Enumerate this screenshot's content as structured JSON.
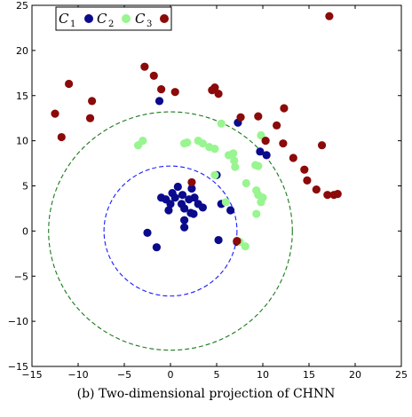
{
  "caption": "(b) Two-dimensional projection of CHNN",
  "chart_data": {
    "type": "scatter",
    "title": "",
    "xlabel": "",
    "ylabel": "",
    "xlim": [
      -15,
      25
    ],
    "ylim": [
      -15,
      25
    ],
    "xticks": [
      -15,
      -10,
      -5,
      0,
      5,
      10,
      15,
      20,
      25
    ],
    "yticks": [
      -15,
      -10,
      -5,
      0,
      5,
      10,
      15,
      20,
      25
    ],
    "xtick_labels": [
      "−15",
      "−10",
      "−5",
      "0",
      "5",
      "10",
      "15",
      "20",
      "25"
    ],
    "ytick_labels": [
      "−15",
      "−10",
      "−5",
      "0",
      "5",
      "10",
      "15",
      "20",
      "25"
    ],
    "grid": false,
    "legend": {
      "placement": "top-left",
      "entries": [
        {
          "symbol": "C",
          "subscript": "1",
          "color": "#0a0a8c"
        },
        {
          "symbol": "C",
          "subscript": "2",
          "color": "#98f590"
        },
        {
          "symbol": "C",
          "subscript": "3",
          "color": "#8b0a0a"
        }
      ]
    },
    "circles": [
      {
        "center": [
          0,
          0
        ],
        "radius": 7.2,
        "color": "#1a1aff",
        "style": "dashed"
      },
      {
        "center": [
          0,
          0
        ],
        "radius": 13.2,
        "color": "#1a7a1a",
        "style": "dashed"
      }
    ],
    "series": [
      {
        "color": "#0a0a8c",
        "points": [
          [
            -1.2,
            14.4
          ],
          [
            -2.5,
            -0.2
          ],
          [
            -1.5,
            -1.8
          ],
          [
            -1.0,
            3.7
          ],
          [
            -0.5,
            3.5
          ],
          [
            0.2,
            4.2
          ],
          [
            0.0,
            3.0
          ],
          [
            -0.2,
            2.3
          ],
          [
            0.5,
            3.7
          ],
          [
            0.8,
            4.9
          ],
          [
            1.3,
            4.0
          ],
          [
            1.2,
            3.0
          ],
          [
            1.5,
            2.5
          ],
          [
            2.0,
            3.5
          ],
          [
            2.3,
            4.7
          ],
          [
            2.6,
            3.7
          ],
          [
            3.0,
            3.0
          ],
          [
            3.5,
            2.6
          ],
          [
            2.5,
            1.9
          ],
          [
            1.5,
            1.2
          ],
          [
            1.5,
            0.4
          ],
          [
            2.2,
            2.0
          ],
          [
            5.0,
            6.2
          ],
          [
            5.5,
            3.0
          ],
          [
            6.5,
            2.3
          ],
          [
            5.2,
            -1.0
          ],
          [
            7.2,
            -1.2
          ],
          [
            9.7,
            8.8
          ],
          [
            10.4,
            8.4
          ],
          [
            7.3,
            12.0
          ]
        ]
      },
      {
        "color": "#98f590",
        "points": [
          [
            -3.5,
            9.5
          ],
          [
            -3.0,
            10.0
          ],
          [
            1.5,
            9.7
          ],
          [
            1.8,
            9.8
          ],
          [
            3.0,
            10.0
          ],
          [
            3.5,
            9.7
          ],
          [
            4.2,
            9.3
          ],
          [
            4.8,
            9.1
          ],
          [
            5.5,
            11.9
          ],
          [
            6.3,
            8.4
          ],
          [
            6.8,
            8.6
          ],
          [
            6.9,
            7.8
          ],
          [
            7.0,
            7.1
          ],
          [
            8.2,
            5.3
          ],
          [
            9.2,
            7.3
          ],
          [
            9.5,
            7.2
          ],
          [
            9.8,
            10.6
          ],
          [
            9.3,
            4.5
          ],
          [
            9.5,
            4.0
          ],
          [
            10.0,
            3.7
          ],
          [
            9.8,
            3.2
          ],
          [
            9.3,
            1.9
          ],
          [
            6.0,
            3.2
          ],
          [
            4.8,
            6.2
          ],
          [
            7.5,
            -1.2
          ],
          [
            8.1,
            -1.7
          ]
        ]
      },
      {
        "color": "#8b0a0a",
        "points": [
          [
            -12.5,
            13.0
          ],
          [
            -11.8,
            10.4
          ],
          [
            -11.0,
            16.3
          ],
          [
            -8.5,
            14.4
          ],
          [
            -8.7,
            12.5
          ],
          [
            -2.8,
            18.2
          ],
          [
            -1.8,
            17.2
          ],
          [
            -1.0,
            15.7
          ],
          [
            0.5,
            15.4
          ],
          [
            4.5,
            15.6
          ],
          [
            4.8,
            15.9
          ],
          [
            5.2,
            15.2
          ],
          [
            2.3,
            5.4
          ],
          [
            7.6,
            12.6
          ],
          [
            9.5,
            12.7
          ],
          [
            11.5,
            11.7
          ],
          [
            12.3,
            13.6
          ],
          [
            10.3,
            10.0
          ],
          [
            12.2,
            9.7
          ],
          [
            13.3,
            8.1
          ],
          [
            14.5,
            6.8
          ],
          [
            14.8,
            5.6
          ],
          [
            15.8,
            4.6
          ],
          [
            16.4,
            9.5
          ],
          [
            17.0,
            4.0
          ],
          [
            17.7,
            4.0
          ],
          [
            18.1,
            4.1
          ],
          [
            17.2,
            23.8
          ],
          [
            7.2,
            -1.1
          ]
        ]
      }
    ]
  }
}
